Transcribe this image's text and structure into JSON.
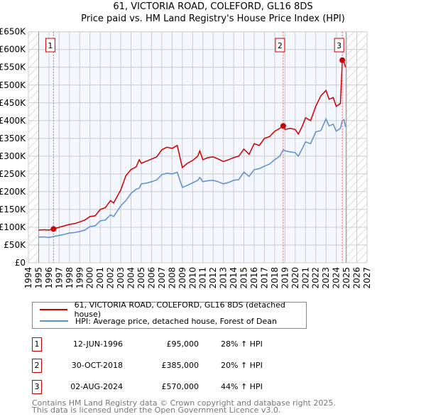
{
  "title_line1": "61, VICTORIA ROAD, COLEFORD, GL16 8DS",
  "title_line2": "Price paid vs. HM Land Registry's House Price Index (HPI)",
  "chart_data": {
    "type": "line",
    "title": "Price paid vs. HM Land Registry's House Price Index (HPI)",
    "xlim": [
      1994,
      2027
    ],
    "ylim": [
      0,
      650000
    ],
    "x_ticks": [
      "1994",
      "1995",
      "1996",
      "1997",
      "1998",
      "1999",
      "2000",
      "2001",
      "2002",
      "2003",
      "2004",
      "2005",
      "2006",
      "2007",
      "2008",
      "2009",
      "2010",
      "2011",
      "2012",
      "2013",
      "2014",
      "2015",
      "2016",
      "2017",
      "2018",
      "2019",
      "2020",
      "2021",
      "2022",
      "2023",
      "2024",
      "2025",
      "2026",
      "2027"
    ],
    "y_ticks": [
      "£0",
      "£50K",
      "£100K",
      "£150K",
      "£200K",
      "£250K",
      "£300K",
      "£350K",
      "£400K",
      "£450K",
      "£500K",
      "£550K",
      "£600K",
      "£650K"
    ],
    "grid": true,
    "series": [
      {
        "name": "61, VICTORIA ROAD, COLEFORD, GL16 8DS (detached house)",
        "color": "#cc0000",
        "x": [
          1995,
          1995.5,
          1996,
          1996.45,
          1997,
          1997.5,
          1998,
          1998.5,
          1999,
          1999.5,
          2000,
          2000.5,
          2001,
          2001.5,
          2002,
          2002.3,
          2003,
          2003.5,
          2004,
          2004.5,
          2004.8,
          2005,
          2005.5,
          2006,
          2006.5,
          2007,
          2007.5,
          2008,
          2008.5,
          2009,
          2009.5,
          2010,
          2010.5,
          2010.7,
          2011,
          2011.5,
          2012,
          2012.5,
          2013,
          2013.5,
          2014,
          2014.5,
          2015,
          2015.5,
          2016,
          2016.5,
          2017,
          2017.5,
          2018,
          2018.5,
          2018.83,
          2019,
          2019.5,
          2020,
          2020.3,
          2020.7,
          2021,
          2021.5,
          2022,
          2022.5,
          2023,
          2023.3,
          2023.7,
          2024,
          2024.4,
          2024.59,
          2024.75,
          2024.9
        ],
        "y": [
          92000,
          93000,
          92000,
          95000,
          100000,
          104000,
          108000,
          110000,
          115000,
          120000,
          130000,
          132000,
          150000,
          155000,
          175000,
          168000,
          205000,
          245000,
          262000,
          270000,
          290000,
          280000,
          286000,
          292000,
          298000,
          318000,
          325000,
          322000,
          330000,
          268000,
          280000,
          288000,
          300000,
          315000,
          290000,
          296000,
          298000,
          292000,
          285000,
          290000,
          296000,
          300000,
          320000,
          305000,
          335000,
          330000,
          350000,
          355000,
          370000,
          378000,
          385000,
          375000,
          378000,
          375000,
          362000,
          385000,
          408000,
          400000,
          440000,
          470000,
          485000,
          460000,
          465000,
          440000,
          448000,
          570000,
          565000,
          550000
        ]
      },
      {
        "name": "HPI: Average price, detached house, Forest of Dean",
        "color": "#5b8fd0",
        "x": [
          1995,
          1995.5,
          1996,
          1996.45,
          1997,
          1997.5,
          1998,
          1998.5,
          1999,
          1999.5,
          2000,
          2000.5,
          2001,
          2001.5,
          2002,
          2002.3,
          2003,
          2003.5,
          2004,
          2004.5,
          2004.8,
          2005,
          2005.5,
          2006,
          2006.5,
          2007,
          2007.5,
          2008,
          2008.5,
          2009,
          2009.5,
          2010,
          2010.5,
          2010.7,
          2011,
          2011.5,
          2012,
          2012.5,
          2013,
          2013.5,
          2014,
          2014.5,
          2015,
          2015.5,
          2016,
          2016.5,
          2017,
          2017.5,
          2018,
          2018.5,
          2018.83,
          2019,
          2019.5,
          2020,
          2020.3,
          2020.7,
          2021,
          2021.5,
          2022,
          2022.5,
          2023,
          2023.3,
          2023.7,
          2024,
          2024.4,
          2024.59,
          2024.75,
          2024.9
        ],
        "y": [
          72000,
          73000,
          71000,
          74000,
          77000,
          80000,
          84000,
          85000,
          88000,
          92000,
          102000,
          104000,
          118000,
          120000,
          135000,
          130000,
          160000,
          175000,
          195000,
          207000,
          210000,
          222000,
          224000,
          228000,
          233000,
          248000,
          252000,
          250000,
          255000,
          212000,
          218000,
          225000,
          232000,
          240000,
          228000,
          231000,
          232000,
          228000,
          222000,
          226000,
          232000,
          234000,
          255000,
          243000,
          262000,
          265000,
          272000,
          278000,
          290000,
          300000,
          318000,
          315000,
          312000,
          310000,
          300000,
          322000,
          340000,
          335000,
          368000,
          372000,
          405000,
          385000,
          390000,
          370000,
          378000,
          400000,
          403000,
          382000
        ]
      }
    ],
    "sales": [
      {
        "label": "1",
        "x": 1996.45,
        "y": 95000
      },
      {
        "label": "2",
        "x": 2018.83,
        "y": 385000
      },
      {
        "label": "3",
        "x": 2024.59,
        "y": 570000
      }
    ],
    "legend_position": "below"
  },
  "legend": {
    "red": "61, VICTORIA ROAD, COLEFORD, GL16 8DS (detached house)",
    "blue": "HPI: Average price, detached house, Forest of Dean"
  },
  "sales_table": [
    {
      "num": "1",
      "date": "12-JUN-1996",
      "price": "£95,000",
      "hpi": "28% ↑ HPI"
    },
    {
      "num": "2",
      "date": "30-OCT-2018",
      "price": "£385,000",
      "hpi": "20% ↑ HPI"
    },
    {
      "num": "3",
      "date": "02-AUG-2024",
      "price": "£570,000",
      "hpi": "44% ↑ HPI"
    }
  ],
  "footer": {
    "line1": "Contains HM Land Registry data © Crown copyright and database right 2025.",
    "line2": "This data is licensed under the Open Government Licence v3.0."
  }
}
